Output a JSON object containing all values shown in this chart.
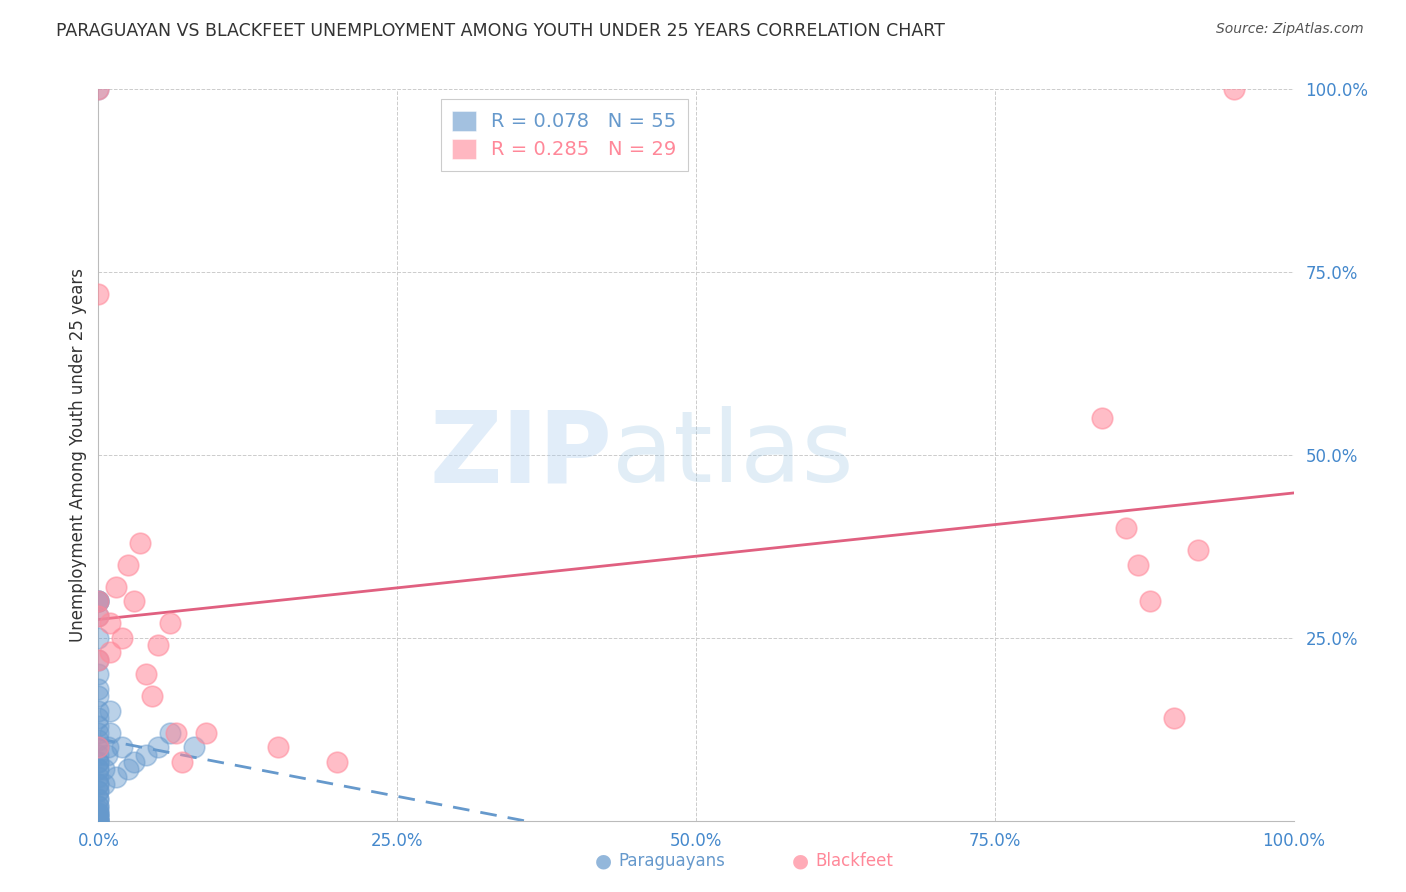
{
  "title": "PARAGUAYAN VS BLACKFEET UNEMPLOYMENT AMONG YOUTH UNDER 25 YEARS CORRELATION CHART",
  "source": "Source: ZipAtlas.com",
  "ylabel": "Unemployment Among Youth under 25 years",
  "xlim": [
    0.0,
    1.0
  ],
  "ylim": [
    0.0,
    1.0
  ],
  "paraguayan_color": "#6699CC",
  "blackfeet_color": "#FF8899",
  "blackfeet_line_color": "#E06080",
  "paraguayan_R": 0.078,
  "paraguayan_N": 55,
  "blackfeet_R": 0.285,
  "blackfeet_N": 29,
  "paraguayan_x": [
    0.0,
    0.0,
    0.0,
    0.0,
    0.0,
    0.0,
    0.0,
    0.0,
    0.0,
    0.0,
    0.0,
    0.0,
    0.0,
    0.0,
    0.0,
    0.0,
    0.0,
    0.0,
    0.0,
    0.0,
    0.0,
    0.0,
    0.0,
    0.0,
    0.0,
    0.0,
    0.0,
    0.0,
    0.0,
    0.0,
    0.0,
    0.0,
    0.0,
    0.0,
    0.0,
    0.0,
    0.0,
    0.0,
    0.0,
    0.0,
    0.0,
    0.005,
    0.005,
    0.007,
    0.008,
    0.01,
    0.01,
    0.015,
    0.02,
    0.025,
    0.03,
    0.04,
    0.05,
    0.06,
    0.08
  ],
  "paraguayan_y": [
    0.0,
    0.0,
    0.0,
    0.0,
    0.0,
    0.005,
    0.005,
    0.008,
    0.01,
    0.01,
    0.015,
    0.02,
    0.02,
    0.03,
    0.03,
    0.04,
    0.04,
    0.05,
    0.05,
    0.06,
    0.07,
    0.07,
    0.08,
    0.08,
    0.09,
    0.1,
    0.11,
    0.12,
    0.13,
    0.14,
    0.15,
    0.17,
    0.18,
    0.2,
    0.22,
    0.25,
    0.28,
    0.3,
    0.3,
    1.0,
    0.3,
    0.05,
    0.07,
    0.09,
    0.1,
    0.12,
    0.15,
    0.06,
    0.1,
    0.07,
    0.08,
    0.09,
    0.1,
    0.12,
    0.1
  ],
  "blackfeet_x": [
    0.0,
    0.0,
    0.0,
    0.0,
    0.0,
    0.0,
    0.01,
    0.01,
    0.015,
    0.02,
    0.025,
    0.03,
    0.035,
    0.04,
    0.045,
    0.05,
    0.06,
    0.065,
    0.07,
    0.09,
    0.15,
    0.2,
    0.84,
    0.86,
    0.87,
    0.88,
    0.9,
    0.92,
    0.95
  ],
  "blackfeet_y": [
    1.0,
    0.72,
    0.22,
    0.28,
    0.3,
    0.1,
    0.27,
    0.23,
    0.32,
    0.25,
    0.35,
    0.3,
    0.38,
    0.2,
    0.17,
    0.24,
    0.27,
    0.12,
    0.08,
    0.12,
    0.1,
    0.08,
    0.55,
    0.4,
    0.35,
    0.3,
    0.14,
    0.37,
    1.0
  ],
  "watermark_zip": "ZIP",
  "watermark_atlas": "atlas",
  "background_color": "#ffffff",
  "grid_color": "#cccccc",
  "title_color": "#333333",
  "tick_color": "#4488CC"
}
